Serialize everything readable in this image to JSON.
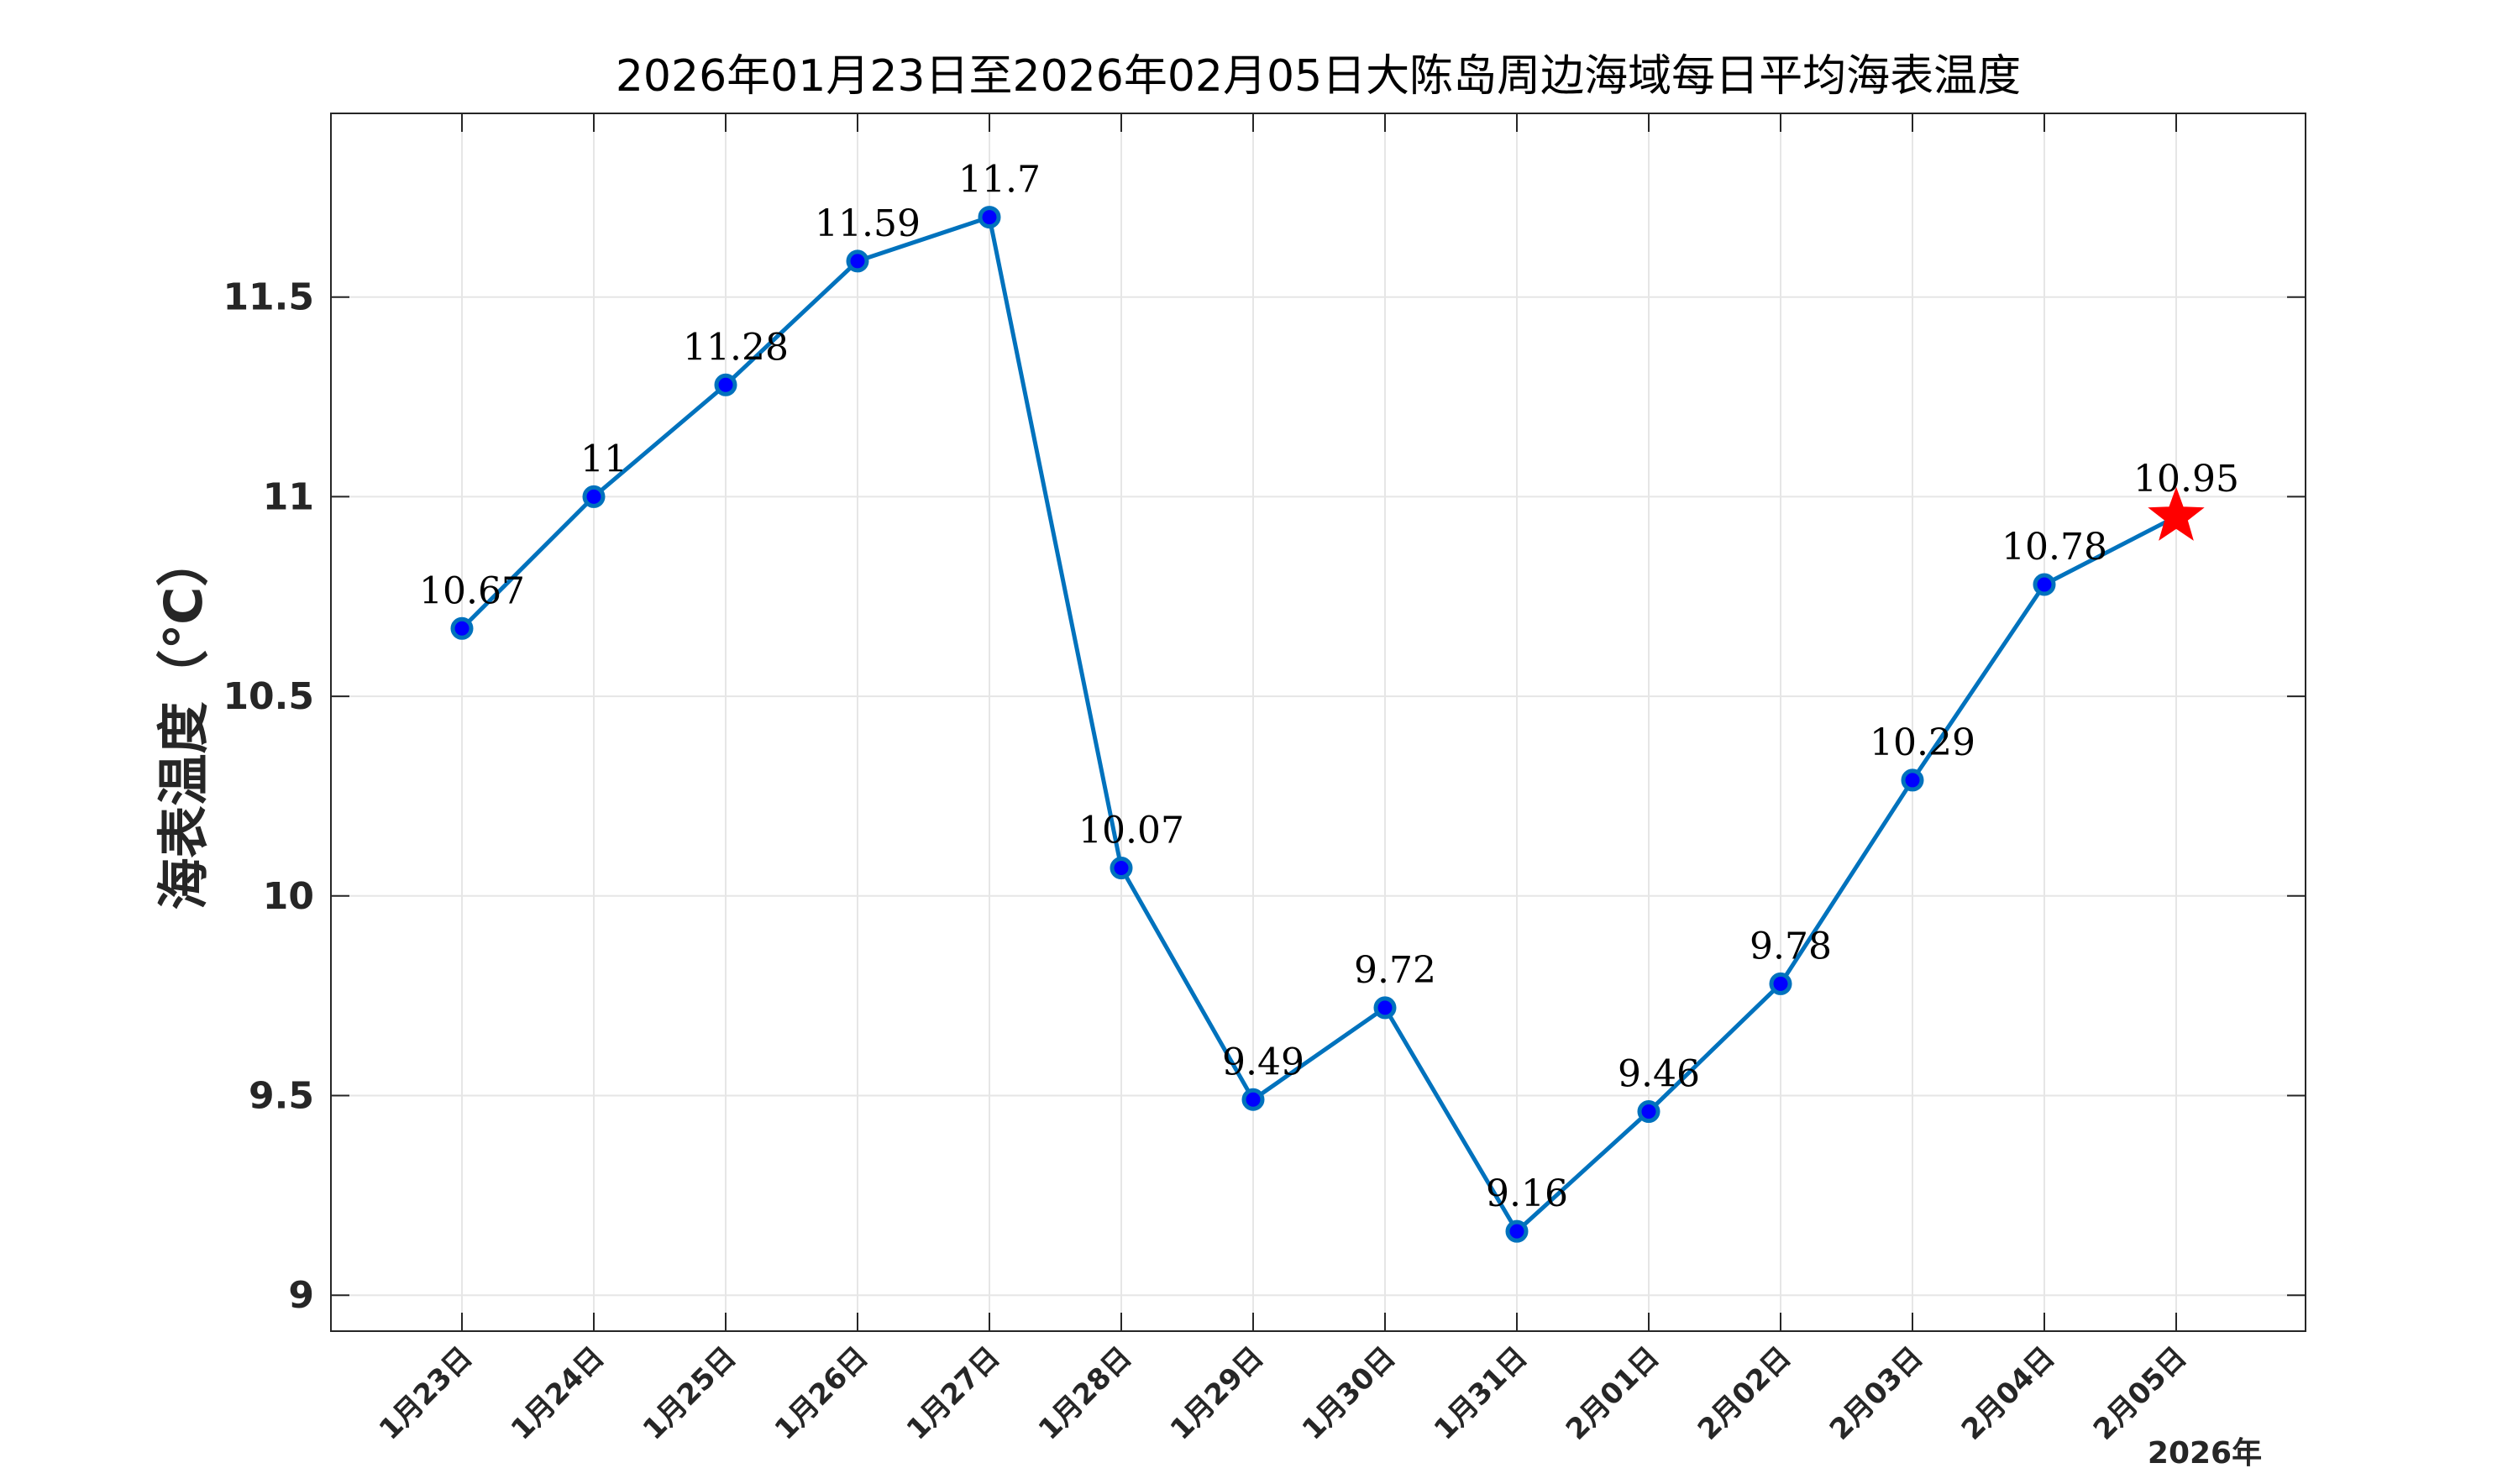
{
  "chart_data": {
    "type": "line",
    "title": "2026年01月23日至2026年02月05日大陈岛周边海域每日平均海表温度",
    "xlabel": "",
    "ylabel": "海表温度（℃）",
    "year_label": "2026年",
    "categories": [
      "1月23日",
      "1月24日",
      "1月25日",
      "1月26日",
      "1月27日",
      "1月28日",
      "1月29日",
      "1月30日",
      "1月31日",
      "2月01日",
      "2月02日",
      "2月03日",
      "2月04日",
      "2月05日"
    ],
    "values": [
      10.67,
      11,
      11.28,
      11.59,
      11.7,
      10.07,
      9.49,
      9.72,
      9.16,
      9.46,
      9.78,
      10.29,
      10.78,
      10.95
    ],
    "value_labels": [
      "10.67",
      "11",
      "11.28",
      "11.59",
      "11.7",
      "10.07",
      "9.49",
      "9.72",
      "9.16",
      "9.46",
      "9.78",
      "10.29",
      "10.78",
      "10.95"
    ],
    "ylim": [
      8.91,
      11.96
    ],
    "yticks": [
      9,
      9.5,
      10,
      10.5,
      11,
      11.5
    ],
    "ytick_labels": [
      "9",
      "9.5",
      "10",
      "10.5",
      "11",
      "11.5"
    ],
    "grid": true,
    "highlight_last_point": "star",
    "colors": {
      "line": "#0072bd",
      "marker_fill": "#0000ff",
      "marker_edge": "#0072bd",
      "star": "#ff0000"
    }
  }
}
